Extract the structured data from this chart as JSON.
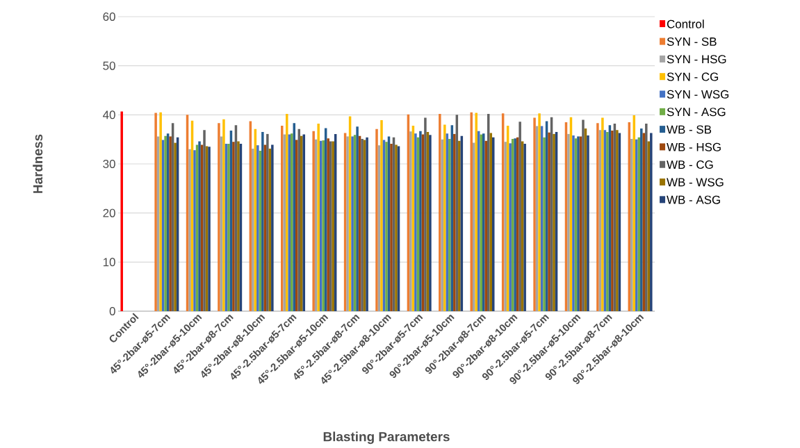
{
  "chart_data": {
    "type": "bar",
    "xlabel": "Blasting Parameters",
    "ylabel": "Hardness",
    "categories": [
      "Control",
      "45°-2bar-ø5-7cm",
      "45°-2bar-ø5-10cm",
      "45°-2bar-ø8-7cm",
      "45°-2bar-ø8-10cm",
      "45°-2.5bar-ø5-7cm",
      "45°-2.5bar-ø5-10cm",
      "45°-2.5bar-ø8-7cm",
      "45°-2.5bar-ø8-10cm",
      "90°-2bar-ø5-7cm",
      "90°-2bar-ø5-10cm",
      "90°-2bar-ø8-7cm",
      "90°-2bar-ø8-10cm",
      "90°-2.5bar-ø5-7cm",
      "90°-2.5bar-ø5-10cm",
      "90°-2.5bar-ø8-7cm",
      "90°-2.5bar-ø8-10cm"
    ],
    "series": [
      {
        "name": "Control",
        "color": "#ff0000",
        "values": [
          40.7,
          null,
          null,
          null,
          null,
          null,
          null,
          null,
          null,
          null,
          null,
          null,
          null,
          null,
          null,
          null,
          null
        ]
      },
      {
        "name": "SYN - SB",
        "color": "#ed7d31",
        "values": [
          null,
          40.4,
          40.0,
          38.3,
          38.7,
          37.8,
          36.7,
          36.3,
          37.1,
          40.1,
          40.2,
          40.5,
          40.3,
          39.4,
          38.5,
          38.3,
          38.5
        ]
      },
      {
        "name": "SYN - HSG",
        "color": "#a5a5a5",
        "values": [
          null,
          35.6,
          33.0,
          35.6,
          33.1,
          36.0,
          35.0,
          35.6,
          33.8,
          36.6,
          35.0,
          34.3,
          34.5,
          37.7,
          36.1,
          36.9,
          35.1
        ]
      },
      {
        "name": "SYN - CG",
        "color": "#ffc000",
        "values": [
          null,
          40.5,
          38.8,
          39.1,
          37.1,
          40.2,
          38.2,
          39.7,
          38.9,
          37.8,
          38.0,
          40.4,
          37.8,
          40.3,
          39.5,
          39.4,
          39.9
        ]
      },
      {
        "name": "SYN - WSG",
        "color": "#4472c4",
        "values": [
          null,
          34.9,
          32.8,
          34.1,
          33.8,
          36.0,
          34.7,
          35.6,
          34.9,
          36.2,
          36.2,
          36.7,
          34.2,
          37.7,
          35.8,
          36.9,
          35.0
        ]
      },
      {
        "name": "SYN - ASG",
        "color": "#70ad47",
        "values": [
          null,
          35.7,
          33.9,
          34.1,
          32.7,
          36.2,
          34.8,
          35.9,
          34.5,
          35.4,
          35.1,
          36.0,
          35.1,
          35.4,
          35.2,
          36.5,
          35.4
        ]
      },
      {
        "name": "WB - SB",
        "color": "#255e91",
        "values": [
          null,
          36.2,
          34.6,
          36.8,
          36.5,
          38.3,
          37.3,
          37.6,
          35.6,
          36.7,
          37.9,
          36.2,
          35.2,
          38.7,
          35.6,
          37.9,
          37.2
        ]
      },
      {
        "name": "WB - HSG",
        "color": "#9e480e",
        "values": [
          null,
          35.6,
          33.9,
          34.5,
          33.9,
          34.9,
          35.2,
          35.7,
          34.1,
          36.0,
          36.1,
          34.7,
          35.4,
          36.4,
          35.6,
          36.8,
          36.3
        ]
      },
      {
        "name": "WB - CG",
        "color": "#636363",
        "values": [
          null,
          38.3,
          36.9,
          37.9,
          36.1,
          37.1,
          34.6,
          35.1,
          35.4,
          39.4,
          40.0,
          40.2,
          38.6,
          39.5,
          39.0,
          38.2,
          38.2
        ]
      },
      {
        "name": "WB - WSG",
        "color": "#997300",
        "values": [
          null,
          34.3,
          33.6,
          34.6,
          33.1,
          35.7,
          34.6,
          34.9,
          33.9,
          36.5,
          34.7,
          36.3,
          34.6,
          36.1,
          37.2,
          36.9,
          34.6
        ]
      },
      {
        "name": "WB - ASG",
        "color": "#264478",
        "values": [
          null,
          35.4,
          33.5,
          34.1,
          33.9,
          36.0,
          36.1,
          35.4,
          33.6,
          35.9,
          35.7,
          35.4,
          34.1,
          36.5,
          35.8,
          36.3,
          36.3
        ]
      }
    ],
    "ylim": [
      0,
      60
    ],
    "yticks": [
      0,
      10,
      20,
      30,
      40,
      50,
      60
    ],
    "grid": "y",
    "legend": "right"
  }
}
